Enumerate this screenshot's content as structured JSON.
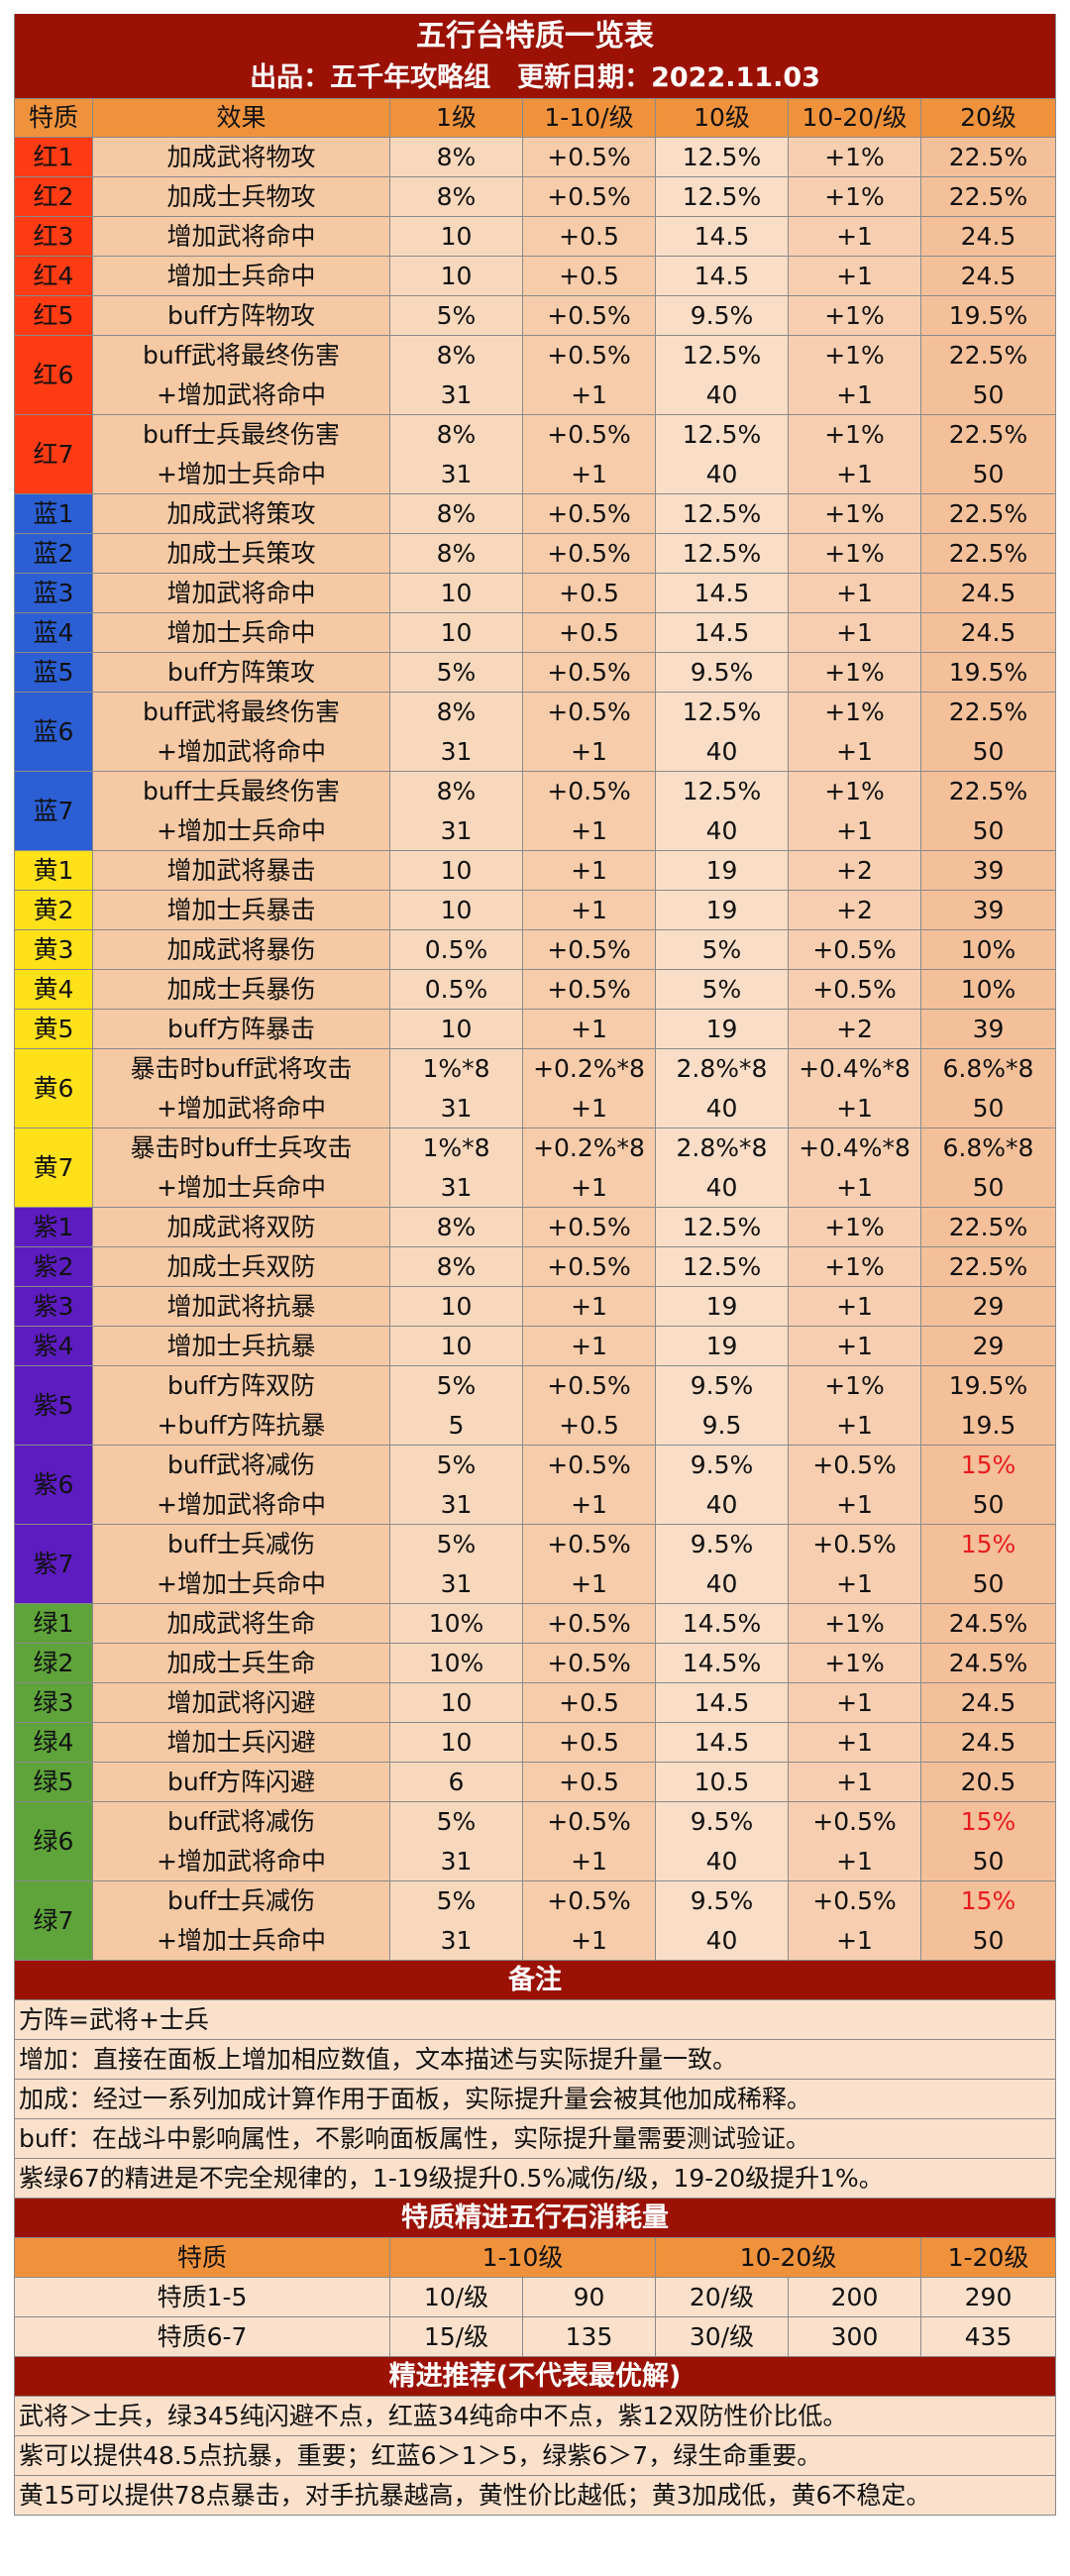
{
  "title": "五行台特质一览表",
  "subtitle": "出品：五千年攻略组　更新日期：2022.11.03",
  "colors": {
    "header_dark": "#9b1205",
    "header_orange": "#f0923c",
    "red": "#ff3b14",
    "blue": "#2c5fd4",
    "yellow": "#ffe11a",
    "purple": "#5c1cbf",
    "green": "#5ea43a",
    "highlight_text": "#e81c1c"
  },
  "main_table": {
    "headers": [
      "特质",
      "效果",
      "1级",
      "1-10/级",
      "10级",
      "10-20/级",
      "20级"
    ],
    "rows": [
      {
        "trait": "红1",
        "color": "red",
        "lines": [
          [
            "加成武将物攻",
            "8%",
            "+0.5%",
            "12.5%",
            "+1%",
            "22.5%"
          ]
        ]
      },
      {
        "trait": "红2",
        "color": "red",
        "lines": [
          [
            "加成士兵物攻",
            "8%",
            "+0.5%",
            "12.5%",
            "+1%",
            "22.5%"
          ]
        ]
      },
      {
        "trait": "红3",
        "color": "red",
        "lines": [
          [
            "增加武将命中",
            "10",
            "+0.5",
            "14.5",
            "+1",
            "24.5"
          ]
        ]
      },
      {
        "trait": "红4",
        "color": "red",
        "lines": [
          [
            "增加士兵命中",
            "10",
            "+0.5",
            "14.5",
            "+1",
            "24.5"
          ]
        ]
      },
      {
        "trait": "红5",
        "color": "red",
        "lines": [
          [
            "buff方阵物攻",
            "5%",
            "+0.5%",
            "9.5%",
            "+1%",
            "19.5%"
          ]
        ]
      },
      {
        "trait": "红6",
        "color": "red",
        "lines": [
          [
            "buff武将最终伤害",
            "8%",
            "+0.5%",
            "12.5%",
            "+1%",
            "22.5%"
          ],
          [
            "+增加武将命中",
            "31",
            "+1",
            "40",
            "+1",
            "50"
          ]
        ]
      },
      {
        "trait": "红7",
        "color": "red",
        "lines": [
          [
            "buff士兵最终伤害",
            "8%",
            "+0.5%",
            "12.5%",
            "+1%",
            "22.5%"
          ],
          [
            "+增加士兵命中",
            "31",
            "+1",
            "40",
            "+1",
            "50"
          ]
        ]
      },
      {
        "trait": "蓝1",
        "color": "blue",
        "lines": [
          [
            "加成武将策攻",
            "8%",
            "+0.5%",
            "12.5%",
            "+1%",
            "22.5%"
          ]
        ]
      },
      {
        "trait": "蓝2",
        "color": "blue",
        "lines": [
          [
            "加成士兵策攻",
            "8%",
            "+0.5%",
            "12.5%",
            "+1%",
            "22.5%"
          ]
        ]
      },
      {
        "trait": "蓝3",
        "color": "blue",
        "lines": [
          [
            "增加武将命中",
            "10",
            "+0.5",
            "14.5",
            "+1",
            "24.5"
          ]
        ]
      },
      {
        "trait": "蓝4",
        "color": "blue",
        "lines": [
          [
            "增加士兵命中",
            "10",
            "+0.5",
            "14.5",
            "+1",
            "24.5"
          ]
        ]
      },
      {
        "trait": "蓝5",
        "color": "blue",
        "lines": [
          [
            "buff方阵策攻",
            "5%",
            "+0.5%",
            "9.5%",
            "+1%",
            "19.5%"
          ]
        ]
      },
      {
        "trait": "蓝6",
        "color": "blue",
        "lines": [
          [
            "buff武将最终伤害",
            "8%",
            "+0.5%",
            "12.5%",
            "+1%",
            "22.5%"
          ],
          [
            "+增加武将命中",
            "31",
            "+1",
            "40",
            "+1",
            "50"
          ]
        ]
      },
      {
        "trait": "蓝7",
        "color": "blue",
        "lines": [
          [
            "buff士兵最终伤害",
            "8%",
            "+0.5%",
            "12.5%",
            "+1%",
            "22.5%"
          ],
          [
            "+增加士兵命中",
            "31",
            "+1",
            "40",
            "+1",
            "50"
          ]
        ]
      },
      {
        "trait": "黄1",
        "color": "yellow",
        "lines": [
          [
            "增加武将暴击",
            "10",
            "+1",
            "19",
            "+2",
            "39"
          ]
        ]
      },
      {
        "trait": "黄2",
        "color": "yellow",
        "lines": [
          [
            "增加士兵暴击",
            "10",
            "+1",
            "19",
            "+2",
            "39"
          ]
        ]
      },
      {
        "trait": "黄3",
        "color": "yellow",
        "lines": [
          [
            "加成武将暴伤",
            "0.5%",
            "+0.5%",
            "5%",
            "+0.5%",
            "10%"
          ]
        ]
      },
      {
        "trait": "黄4",
        "color": "yellow",
        "lines": [
          [
            "加成士兵暴伤",
            "0.5%",
            "+0.5%",
            "5%",
            "+0.5%",
            "10%"
          ]
        ]
      },
      {
        "trait": "黄5",
        "color": "yellow",
        "lines": [
          [
            "buff方阵暴击",
            "10",
            "+1",
            "19",
            "+2",
            "39"
          ]
        ]
      },
      {
        "trait": "黄6",
        "color": "yellow",
        "lines": [
          [
            "暴击时buff武将攻击",
            "1%*8",
            "+0.2%*8",
            "2.8%*8",
            "+0.4%*8",
            "6.8%*8"
          ],
          [
            "+增加武将命中",
            "31",
            "+1",
            "40",
            "+1",
            "50"
          ]
        ]
      },
      {
        "trait": "黄7",
        "color": "yellow",
        "lines": [
          [
            "暴击时buff士兵攻击",
            "1%*8",
            "+0.2%*8",
            "2.8%*8",
            "+0.4%*8",
            "6.8%*8"
          ],
          [
            "+增加士兵命中",
            "31",
            "+1",
            "40",
            "+1",
            "50"
          ]
        ]
      },
      {
        "trait": "紫1",
        "color": "purple",
        "lines": [
          [
            "加成武将双防",
            "8%",
            "+0.5%",
            "12.5%",
            "+1%",
            "22.5%"
          ]
        ]
      },
      {
        "trait": "紫2",
        "color": "purple",
        "lines": [
          [
            "加成士兵双防",
            "8%",
            "+0.5%",
            "12.5%",
            "+1%",
            "22.5%"
          ]
        ]
      },
      {
        "trait": "紫3",
        "color": "purple",
        "lines": [
          [
            "增加武将抗暴",
            "10",
            "+1",
            "19",
            "+1",
            "29"
          ]
        ]
      },
      {
        "trait": "紫4",
        "color": "purple",
        "lines": [
          [
            "增加士兵抗暴",
            "10",
            "+1",
            "19",
            "+1",
            "29"
          ]
        ]
      },
      {
        "trait": "紫5",
        "color": "purple",
        "lines": [
          [
            "buff方阵双防",
            "5%",
            "+0.5%",
            "9.5%",
            "+1%",
            "19.5%"
          ],
          [
            "+buff方阵抗暴",
            "5",
            "+0.5",
            "9.5",
            "+1",
            "19.5"
          ]
        ]
      },
      {
        "trait": "紫6",
        "color": "purple",
        "lines": [
          [
            "buff武将减伤",
            "5%",
            "+0.5%",
            "9.5%",
            "+0.5%",
            "15%"
          ],
          [
            "+增加武将命中",
            "31",
            "+1",
            "40",
            "+1",
            "50"
          ]
        ],
        "highlight": true
      },
      {
        "trait": "紫7",
        "color": "purple",
        "lines": [
          [
            "buff士兵减伤",
            "5%",
            "+0.5%",
            "9.5%",
            "+0.5%",
            "15%"
          ],
          [
            "+增加士兵命中",
            "31",
            "+1",
            "40",
            "+1",
            "50"
          ]
        ],
        "highlight": true
      },
      {
        "trait": "绿1",
        "color": "green",
        "lines": [
          [
            "加成武将生命",
            "10%",
            "+0.5%",
            "14.5%",
            "+1%",
            "24.5%"
          ]
        ]
      },
      {
        "trait": "绿2",
        "color": "green",
        "lines": [
          [
            "加成士兵生命",
            "10%",
            "+0.5%",
            "14.5%",
            "+1%",
            "24.5%"
          ]
        ]
      },
      {
        "trait": "绿3",
        "color": "green",
        "lines": [
          [
            "增加武将闪避",
            "10",
            "+0.5",
            "14.5",
            "+1",
            "24.5"
          ]
        ]
      },
      {
        "trait": "绿4",
        "color": "green",
        "lines": [
          [
            "增加士兵闪避",
            "10",
            "+0.5",
            "14.5",
            "+1",
            "24.5"
          ]
        ]
      },
      {
        "trait": "绿5",
        "color": "green",
        "lines": [
          [
            "buff方阵闪避",
            "6",
            "+0.5",
            "10.5",
            "+1",
            "20.5"
          ]
        ]
      },
      {
        "trait": "绿6",
        "color": "green",
        "lines": [
          [
            "buff武将减伤",
            "5%",
            "+0.5%",
            "9.5%",
            "+0.5%",
            "15%"
          ],
          [
            "+增加武将命中",
            "31",
            "+1",
            "40",
            "+1",
            "50"
          ]
        ],
        "highlight": true
      },
      {
        "trait": "绿7",
        "color": "green",
        "lines": [
          [
            "buff士兵减伤",
            "5%",
            "+0.5%",
            "9.5%",
            "+0.5%",
            "15%"
          ],
          [
            "+增加士兵命中",
            "31",
            "+1",
            "40",
            "+1",
            "50"
          ]
        ],
        "highlight": true
      }
    ]
  },
  "notes": {
    "title": "备注",
    "items": [
      "方阵=武将+士兵",
      "增加：直接在面板上增加相应数值，文本描述与实际提升量一致。",
      "加成：经过一系列加成计算作用于面板，实际提升量会被其他加成稀释。",
      "buff：在战斗中影响属性，不影响面板属性，实际提升量需要测试验证。",
      "紫绿67的精进是不完全规律的，1-19级提升0.5%减伤/级，19-20级提升1%。"
    ]
  },
  "cost_table": {
    "title": "特质精进五行石消耗量",
    "headers": [
      "特质",
      "1-10级",
      "10-20级",
      "1-20级"
    ],
    "rows": [
      [
        "特质1-5",
        "10/级",
        "90",
        "20/级",
        "200",
        "290"
      ],
      [
        "特质6-7",
        "15/级",
        "135",
        "30/级",
        "300",
        "435"
      ]
    ]
  },
  "recommend": {
    "title": "精进推荐(不代表最优解)",
    "items": [
      "武将＞士兵，绿345纯闪避不点，红蓝34纯命中不点，紫12双防性价比低。",
      "紫可以提供48.5点抗暴，重要；红蓝6＞1＞5，绿紫6＞7，绿生命重要。",
      "黄15可以提供78点暴击，对手抗暴越高，黄性价比越低；黄3加成低，黄6不稳定。"
    ]
  }
}
